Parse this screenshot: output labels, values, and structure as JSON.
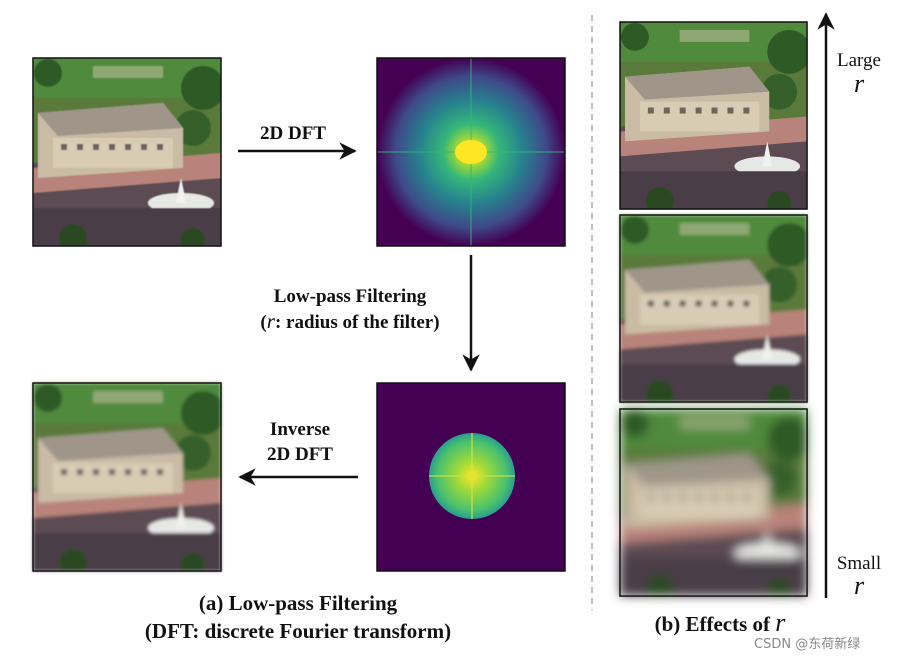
{
  "panel_a": {
    "forward_label": "2D DFT",
    "filter_label": "Low-pass Filtering",
    "filter_note_open": "(",
    "filter_note_symbol": "r",
    "filter_note_rest": ": radius of the filter)",
    "inverse_label_line1": "Inverse",
    "inverse_label_line2": "2D DFT",
    "caption_line1": "(a) Low-pass Filtering",
    "caption_line2": "(DFT: discrete Fourier transform)"
  },
  "panel_b": {
    "top_label": "Large",
    "top_symbol": "r",
    "bottom_label": "Small",
    "bottom_symbol": "r",
    "caption_text": "(b) Effects of ",
    "caption_symbol": "r"
  },
  "watermark": "CSDN @东荷新绿"
}
